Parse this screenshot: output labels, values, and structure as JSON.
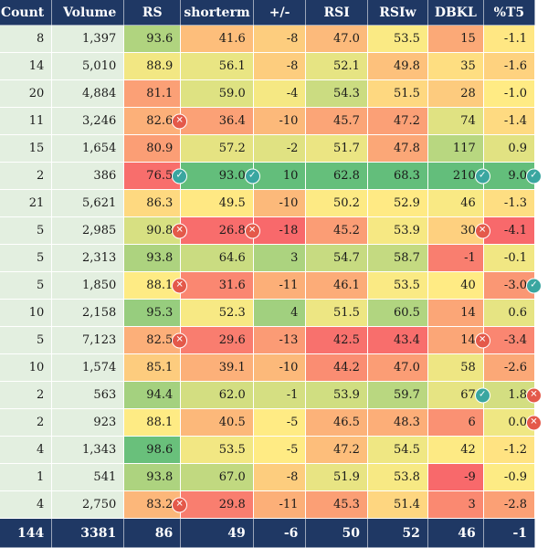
{
  "table": {
    "columns": [
      {
        "key": "count",
        "label": "Count"
      },
      {
        "key": "volume",
        "label": "Volume"
      },
      {
        "key": "rs",
        "label": "RS"
      },
      {
        "key": "shorterm",
        "label": "shorterm"
      },
      {
        "key": "pm",
        "label": "+/-"
      },
      {
        "key": "rsi",
        "label": "RSI"
      },
      {
        "key": "rsiw",
        "label": "RSIw"
      },
      {
        "key": "dbkl",
        "label": "DBKL"
      },
      {
        "key": "t5",
        "label": "%T5"
      }
    ],
    "rows": [
      {
        "count": "8",
        "volume": "1,397",
        "rs": "93.6",
        "shorterm": "41.6",
        "pm": "-8",
        "rsi": "47.0",
        "rsiw": "53.5",
        "dbkl": "15",
        "t5": "-1.1"
      },
      {
        "count": "14",
        "volume": "5,010",
        "rs": "88.9",
        "shorterm": "56.1",
        "pm": "-8",
        "rsi": "52.1",
        "rsiw": "49.8",
        "dbkl": "35",
        "t5": "-1.6"
      },
      {
        "count": "20",
        "volume": "4,884",
        "rs": "81.1",
        "shorterm": "59.0",
        "pm": "-4",
        "rsi": "54.3",
        "rsiw": "51.5",
        "dbkl": "28",
        "t5": "-1.0"
      },
      {
        "count": "11",
        "volume": "3,246",
        "rs": "82.6",
        "shorterm": "36.4",
        "pm": "-10",
        "rsi": "45.7",
        "rsiw": "47.2",
        "dbkl": "74",
        "t5": "-1.4",
        "icons": {
          "rs": "x"
        }
      },
      {
        "count": "15",
        "volume": "1,654",
        "rs": "80.9",
        "shorterm": "57.2",
        "pm": "-2",
        "rsi": "51.7",
        "rsiw": "47.8",
        "dbkl": "117",
        "t5": "0.9"
      },
      {
        "count": "2",
        "volume": "386",
        "rs": "76.5",
        "shorterm": "93.0",
        "pm": "10",
        "rsi": "62.8",
        "rsiw": "68.3",
        "dbkl": "210",
        "t5": "9.0",
        "icons": {
          "rs": "check",
          "shorterm": "check",
          "dbkl": "check",
          "t5": "check"
        }
      },
      {
        "count": "21",
        "volume": "5,621",
        "rs": "86.3",
        "shorterm": "49.5",
        "pm": "-10",
        "rsi": "50.2",
        "rsiw": "52.9",
        "dbkl": "46",
        "t5": "-1.3"
      },
      {
        "count": "5",
        "volume": "2,985",
        "rs": "90.8",
        "shorterm": "26.8",
        "pm": "-18",
        "rsi": "45.2",
        "rsiw": "53.9",
        "dbkl": "30",
        "t5": "-4.1",
        "icons": {
          "rs": "x",
          "shorterm": "x",
          "dbkl": "x"
        }
      },
      {
        "count": "5",
        "volume": "2,313",
        "rs": "93.8",
        "shorterm": "64.6",
        "pm": "3",
        "rsi": "54.7",
        "rsiw": "58.7",
        "dbkl": "-1",
        "t5": "-0.1"
      },
      {
        "count": "5",
        "volume": "1,850",
        "rs": "88.1",
        "shorterm": "31.6",
        "pm": "-11",
        "rsi": "46.1",
        "rsiw": "53.5",
        "dbkl": "40",
        "t5": "-3.0",
        "icons": {
          "rs": "x",
          "t5": "check"
        }
      },
      {
        "count": "10",
        "volume": "2,158",
        "rs": "95.3",
        "shorterm": "52.3",
        "pm": "4",
        "rsi": "51.5",
        "rsiw": "60.5",
        "dbkl": "14",
        "t5": "0.6"
      },
      {
        "count": "5",
        "volume": "7,123",
        "rs": "82.5",
        "shorterm": "29.6",
        "pm": "-13",
        "rsi": "42.5",
        "rsiw": "43.4",
        "dbkl": "14",
        "t5": "-3.4",
        "icons": {
          "rs": "x",
          "dbkl": "x"
        }
      },
      {
        "count": "10",
        "volume": "1,574",
        "rs": "85.1",
        "shorterm": "39.1",
        "pm": "-10",
        "rsi": "44.2",
        "rsiw": "47.0",
        "dbkl": "58",
        "t5": "-2.6"
      },
      {
        "count": "2",
        "volume": "563",
        "rs": "94.4",
        "shorterm": "62.0",
        "pm": "-1",
        "rsi": "53.9",
        "rsiw": "59.7",
        "dbkl": "67",
        "t5": "1.8",
        "icons": {
          "dbkl": "check",
          "t5": "x"
        }
      },
      {
        "count": "2",
        "volume": "923",
        "rs": "88.1",
        "shorterm": "40.5",
        "pm": "-5",
        "rsi": "46.5",
        "rsiw": "48.3",
        "dbkl": "6",
        "t5": "0.0",
        "icons": {
          "t5": "x"
        }
      },
      {
        "count": "4",
        "volume": "1,343",
        "rs": "98.6",
        "shorterm": "53.5",
        "pm": "-5",
        "rsi": "47.2",
        "rsiw": "54.5",
        "dbkl": "42",
        "t5": "-1.2"
      },
      {
        "count": "1",
        "volume": "541",
        "rs": "93.8",
        "shorterm": "67.0",
        "pm": "-8",
        "rsi": "51.9",
        "rsiw": "53.8",
        "dbkl": "-9",
        "t5": "-0.9"
      },
      {
        "count": "4",
        "volume": "2,750",
        "rs": "83.2",
        "shorterm": "29.8",
        "pm": "-11",
        "rsi": "45.3",
        "rsiw": "51.4",
        "dbkl": "3",
        "t5": "-2.8",
        "icons": {
          "rs": "x"
        }
      }
    ],
    "footer": {
      "count": "144",
      "volume": "3381",
      "rs": "86",
      "shorterm": "49",
      "pm": "-6",
      "rsi": "50",
      "rsiw": "52",
      "dbkl": "46",
      "t5": "-1"
    }
  },
  "colors": {
    "header_bg": "#1f3864",
    "count_bg": "#e3efe0",
    "scale_low": "#f8696b",
    "scale_mid": "#ffeb84",
    "scale_high": "#63be7b",
    "icon_x": "#e4594a",
    "icon_check": "#3aa6a0"
  },
  "icons": {
    "x": "x-circle-icon",
    "check": "check-circle-icon"
  }
}
